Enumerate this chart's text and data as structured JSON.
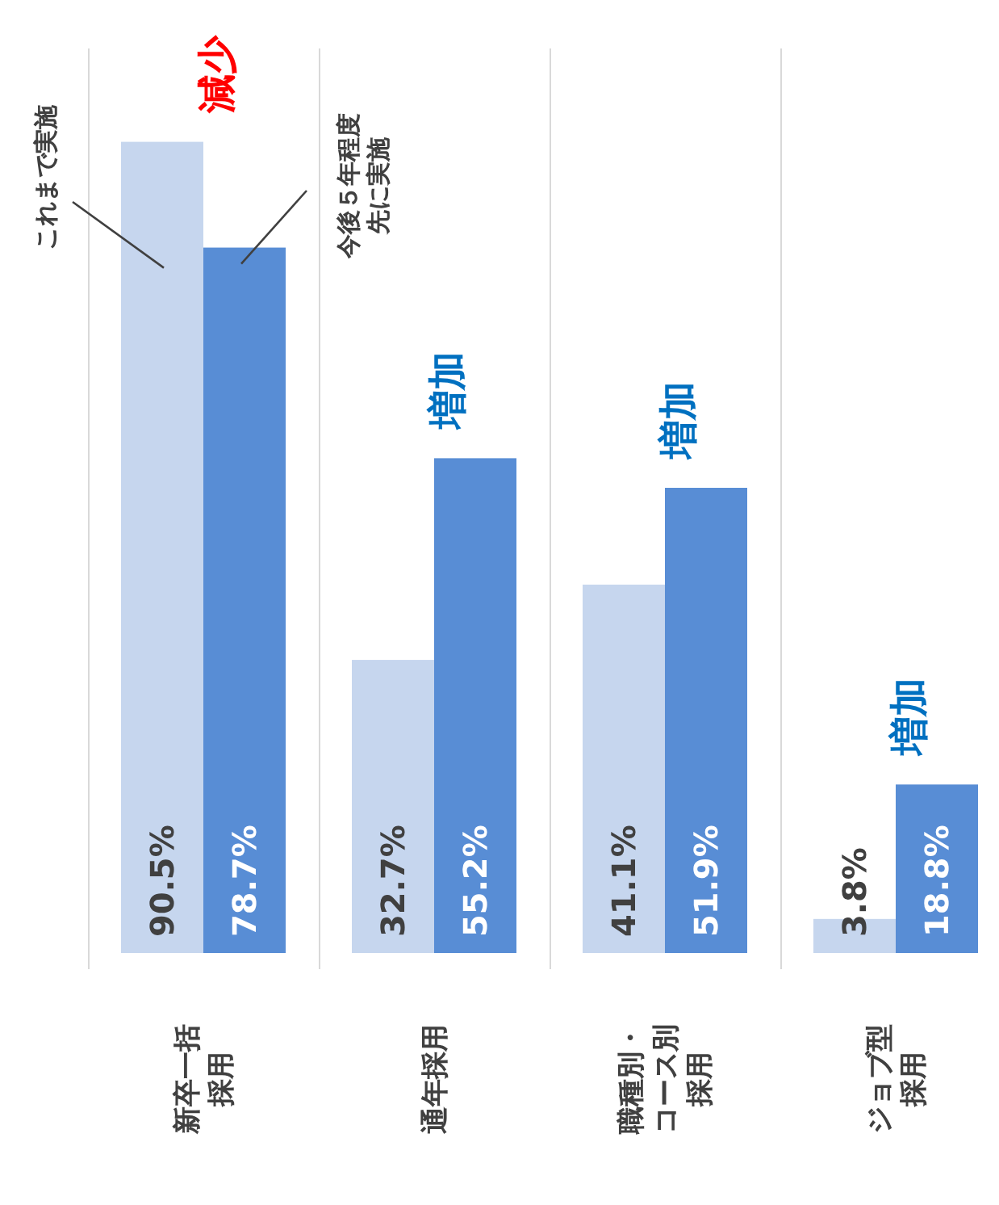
{
  "chart_data": {
    "type": "bar",
    "categories": [
      "新卒一括採用",
      "通年採用",
      "職種別・コース別採用",
      "ジョブ型採用"
    ],
    "series": [
      {
        "name": "これまで実施",
        "color": "#c6d6ee",
        "values": [
          90.5,
          32.7,
          41.1,
          3.8
        ],
        "value_labels": [
          "90.5%",
          "32.7%",
          "41.1%",
          "3.8%"
        ]
      },
      {
        "name": "今後５年程度先に実施",
        "color": "#588dd5",
        "values": [
          78.7,
          55.2,
          51.9,
          18.8
        ],
        "value_labels": [
          "78.7%",
          "55.2%",
          "51.9%",
          "18.8%"
        ]
      }
    ],
    "annotations": [
      "減少",
      "増加",
      "増加",
      "増加"
    ]
  }
}
